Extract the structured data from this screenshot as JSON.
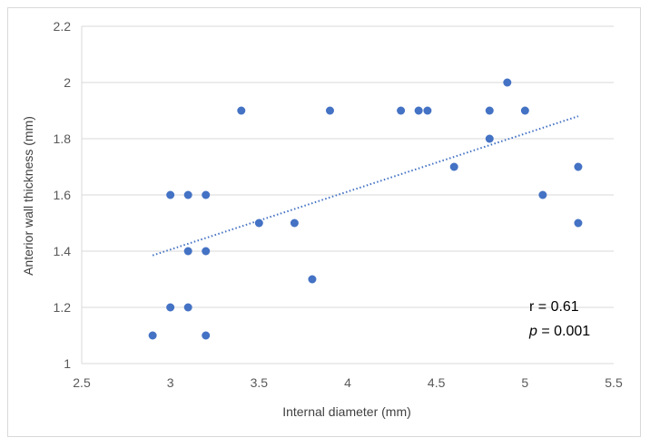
{
  "chart_data": {
    "type": "scatter",
    "title": "",
    "xlabel": "Internal diameter (mm)",
    "ylabel": "Anterior wall thickness (mm)",
    "xlim": [
      2.5,
      5.5
    ],
    "ylim": [
      1,
      2.2
    ],
    "xticks": [
      "2.5",
      "3",
      "3.5",
      "4",
      "4.5",
      "5",
      "5.5"
    ],
    "yticks": [
      "1",
      "1.2",
      "1.4",
      "1.6",
      "1.8",
      "2",
      "2.2"
    ],
    "grid": "horizontal",
    "legend": "none",
    "series": [
      {
        "points": [
          [
            2.9,
            1.1
          ],
          [
            3.0,
            1.6
          ],
          [
            3.0,
            1.2
          ],
          [
            3.1,
            1.6
          ],
          [
            3.1,
            1.4
          ],
          [
            3.1,
            1.2
          ],
          [
            3.2,
            1.6
          ],
          [
            3.2,
            1.4
          ],
          [
            3.2,
            1.1
          ],
          [
            3.4,
            1.9
          ],
          [
            3.5,
            1.5
          ],
          [
            3.7,
            1.5
          ],
          [
            3.8,
            1.3
          ],
          [
            3.9,
            1.9
          ],
          [
            4.3,
            1.9
          ],
          [
            4.4,
            1.9
          ],
          [
            4.45,
            1.9
          ],
          [
            4.6,
            1.7
          ],
          [
            4.8,
            1.9
          ],
          [
            4.8,
            1.8
          ],
          [
            4.9,
            2.0
          ],
          [
            5.0,
            1.9
          ],
          [
            5.1,
            1.6
          ],
          [
            5.3,
            1.7
          ],
          [
            5.3,
            1.5
          ]
        ],
        "color": "#4472c4"
      }
    ],
    "trendline": {
      "style": "dotted linear",
      "color": "#4472c4",
      "x": [
        2.9,
        5.3
      ],
      "y": [
        1.385,
        1.88
      ]
    },
    "annotations": {
      "r_line": "r = 0.61",
      "p_symbol": "p",
      "p_rest": " = 0.001"
    }
  }
}
